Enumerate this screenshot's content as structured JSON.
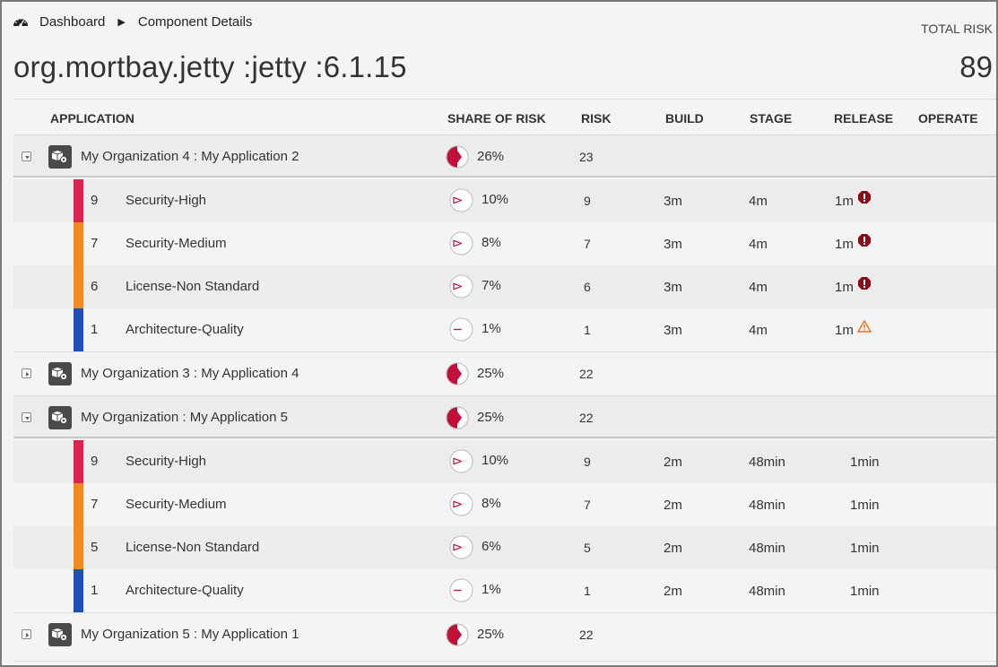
{
  "breadcrumb": {
    "icon": "dashboard-gauge-icon",
    "home": "Dashboard",
    "separator": "▶",
    "current": "Component Details"
  },
  "component": {
    "title": "org.mortbay.jetty :jetty :6.1.15",
    "total_risk_label": "TOTAL RISK",
    "total_risk_value": "89"
  },
  "table": {
    "headers": {
      "application": "APPLICATION",
      "share": "SHARE OF RISK",
      "risk": "RISK",
      "build": "BUILD",
      "stage": "STAGE",
      "release": "RELEASE",
      "operate": "OPERATE"
    }
  },
  "colors": {
    "security_high": "#e0204f",
    "security_medium": "#f28a1e",
    "license": "#f28a1e",
    "architecture": "#1c4fb8",
    "pie_fill": "#c2103a",
    "critical_icon": "#8b0d1a",
    "warning_icon": "#e8731d"
  },
  "apps": [
    {
      "name": "My Organization 4 : My Application 2",
      "share": "26%",
      "share_fraction": 0.26,
      "risk": "23",
      "expanded": true,
      "details": [
        {
          "count": "9",
          "category": "Security-High",
          "share": "10%",
          "share_fraction": 0.1,
          "risk": "9",
          "build": "3m",
          "stage": "4m",
          "release": "1m",
          "release_icon": "critical-icon"
        },
        {
          "count": "7",
          "category": "Security-Medium",
          "share": "8%",
          "share_fraction": 0.08,
          "risk": "7",
          "build": "3m",
          "stage": "4m",
          "release": "1m",
          "release_icon": "critical-icon"
        },
        {
          "count": "6",
          "category": "License-Non Standard",
          "share": "7%",
          "share_fraction": 0.07,
          "risk": "6",
          "build": "3m",
          "stage": "4m",
          "release": "1m",
          "release_icon": "critical-icon"
        },
        {
          "count": "1",
          "category": "Architecture-Quality",
          "share": "1%",
          "share_fraction": 0.01,
          "risk": "1",
          "build": "3m",
          "stage": "4m",
          "release": "1m",
          "release_icon": "warning-icon"
        }
      ]
    },
    {
      "name": "My Organization 3 : My Application 4",
      "share": "25%",
      "share_fraction": 0.25,
      "risk": "22",
      "expanded": false
    },
    {
      "name": "My Organization : My Application 5",
      "share": "25%",
      "share_fraction": 0.25,
      "risk": "22",
      "expanded": true,
      "details": [
        {
          "count": "9",
          "category": "Security-High",
          "share": "10%",
          "share_fraction": 0.1,
          "risk": "9",
          "build": "2m",
          "stage": "48min",
          "release": "1min"
        },
        {
          "count": "7",
          "category": "Security-Medium",
          "share": "8%",
          "share_fraction": 0.08,
          "risk": "7",
          "build": "2m",
          "stage": "48min",
          "release": "1min"
        },
        {
          "count": "5",
          "category": "License-Non Standard",
          "share": "6%",
          "share_fraction": 0.06,
          "risk": "5",
          "build": "2m",
          "stage": "48min",
          "release": "1min"
        },
        {
          "count": "1",
          "category": "Architecture-Quality",
          "share": "1%",
          "share_fraction": 0.01,
          "risk": "1",
          "build": "2m",
          "stage": "48min",
          "release": "1min"
        }
      ]
    },
    {
      "name": "My Organization 5 : My Application 1",
      "share": "25%",
      "share_fraction": 0.25,
      "risk": "22",
      "expanded": false
    }
  ]
}
